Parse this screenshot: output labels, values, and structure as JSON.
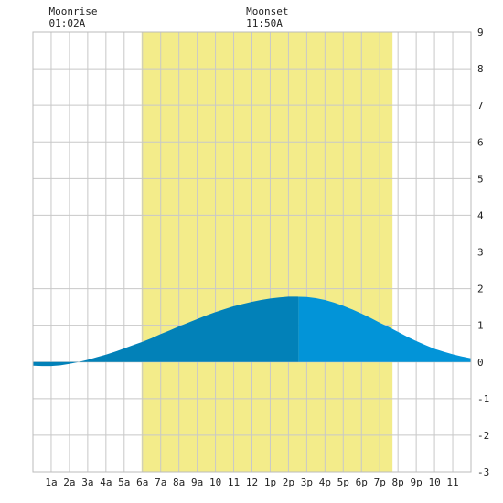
{
  "chart_data": {
    "type": "area",
    "title": "",
    "xlabel": "",
    "ylabel": "",
    "x_unit": "hour",
    "xlim": [
      0,
      24
    ],
    "ylim": [
      -3,
      9
    ],
    "y_ticks": [
      -3,
      -2,
      -1,
      0,
      1,
      2,
      3,
      4,
      5,
      6,
      7,
      8,
      9
    ],
    "x_ticks": [
      {
        "x": 1,
        "label": "1a"
      },
      {
        "x": 2,
        "label": "2a"
      },
      {
        "x": 3,
        "label": "3a"
      },
      {
        "x": 4,
        "label": "4a"
      },
      {
        "x": 5,
        "label": "5a"
      },
      {
        "x": 6,
        "label": "6a"
      },
      {
        "x": 7,
        "label": "7a"
      },
      {
        "x": 8,
        "label": "8a"
      },
      {
        "x": 9,
        "label": "9a"
      },
      {
        "x": 10,
        "label": "10"
      },
      {
        "x": 11,
        "label": "11"
      },
      {
        "x": 12,
        "label": "12"
      },
      {
        "x": 13,
        "label": "1p"
      },
      {
        "x": 14,
        "label": "2p"
      },
      {
        "x": 15,
        "label": "3p"
      },
      {
        "x": 16,
        "label": "4p"
      },
      {
        "x": 17,
        "label": "5p"
      },
      {
        "x": 18,
        "label": "6p"
      },
      {
        "x": 19,
        "label": "7p"
      },
      {
        "x": 20,
        "label": "8p"
      },
      {
        "x": 21,
        "label": "9p"
      },
      {
        "x": 22,
        "label": "10"
      },
      {
        "x": 23,
        "label": "11"
      }
    ],
    "grid": true,
    "daylight": {
      "start": 5.95,
      "end": 19.7,
      "color": "#f3ec8a"
    },
    "series": [
      {
        "x": [
          0,
          0.5,
          1,
          1.5,
          2,
          2.5,
          3,
          3.5,
          4,
          4.5,
          5,
          5.5,
          6,
          6.5,
          7,
          7.5,
          8,
          8.5,
          9,
          9.5,
          10,
          10.5,
          11,
          11.5,
          12,
          12.5,
          13,
          13.5,
          14,
          14.5,
          15,
          15.5,
          16,
          16.5,
          17,
          17.5,
          18,
          18.5,
          19,
          19.5,
          20,
          20.5,
          21,
          21.5,
          22,
          22.5,
          23,
          23.5,
          24
        ],
        "y": [
          -0.1,
          -0.11,
          -0.11,
          -0.09,
          -0.05,
          0.0,
          0.06,
          0.13,
          0.2,
          0.28,
          0.37,
          0.46,
          0.55,
          0.65,
          0.76,
          0.86,
          0.97,
          1.07,
          1.17,
          1.27,
          1.36,
          1.44,
          1.52,
          1.58,
          1.64,
          1.69,
          1.73,
          1.76,
          1.78,
          1.78,
          1.77,
          1.74,
          1.69,
          1.62,
          1.53,
          1.43,
          1.32,
          1.2,
          1.07,
          0.95,
          0.82,
          0.69,
          0.57,
          0.46,
          0.36,
          0.28,
          0.21,
          0.15,
          0.1
        ],
        "peak_x": 14.55
      }
    ],
    "colors": {
      "fill_before_peak": "#0281b8",
      "fill_after_peak": "#0294d8",
      "grid": "#c8c8c8",
      "daylight": "#f3ec8a"
    },
    "annotations": [
      {
        "label": "Moonrise",
        "time": "01:02A",
        "x": 1.03
      },
      {
        "label": "Moonset",
        "time": "11:50A",
        "x": 11.83
      }
    ]
  }
}
